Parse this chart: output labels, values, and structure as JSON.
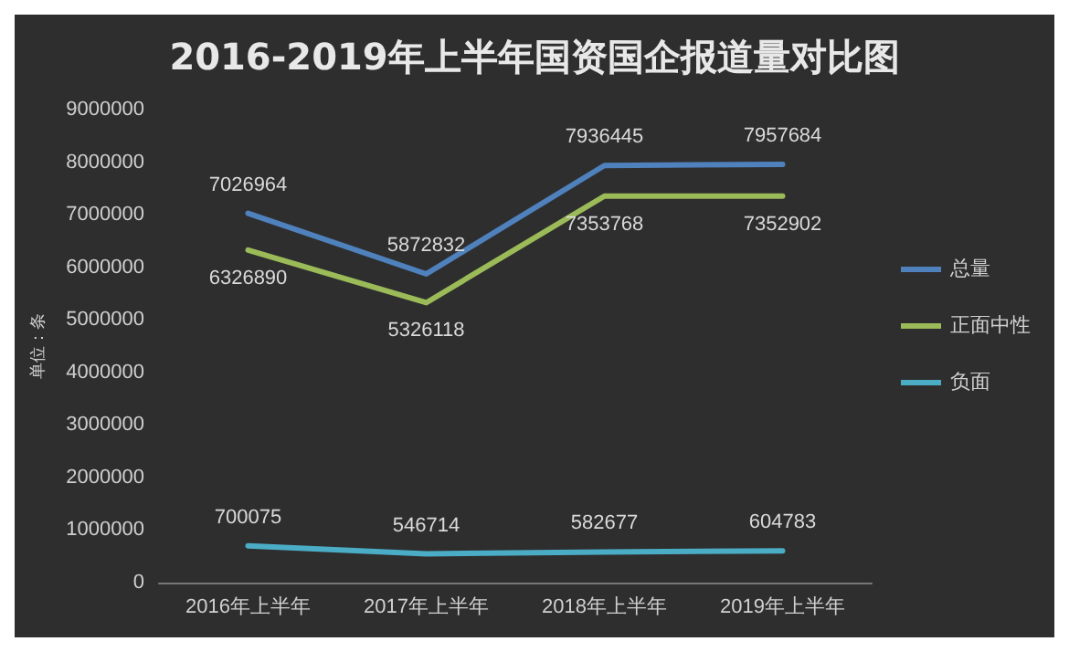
{
  "chart_data": {
    "type": "line",
    "title": "2016-2019年上半年国资国企报道量对比图",
    "ylabel": "单位：条",
    "categories": [
      "2016年上半年",
      "2017年上半年",
      "2018年上半年",
      "2019年上半年"
    ],
    "series": [
      {
        "name": "总量",
        "color": "#4f81bd",
        "values": [
          7026964,
          5872832,
          7936445,
          7957684
        ]
      },
      {
        "name": "正面中性",
        "color": "#9bbb59",
        "values": [
          6326890,
          5326118,
          7353768,
          7352902
        ]
      },
      {
        "name": "负面",
        "color": "#4bacc6",
        "values": [
          700075,
          546714,
          582677,
          604783
        ]
      }
    ],
    "ylim": [
      0,
      9000000
    ],
    "yticks": [
      0,
      1000000,
      2000000,
      3000000,
      4000000,
      5000000,
      6000000,
      7000000,
      8000000,
      9000000
    ],
    "data_labels": true,
    "legend": "right",
    "grid": false,
    "marker": "none",
    "line_style": "solid"
  }
}
